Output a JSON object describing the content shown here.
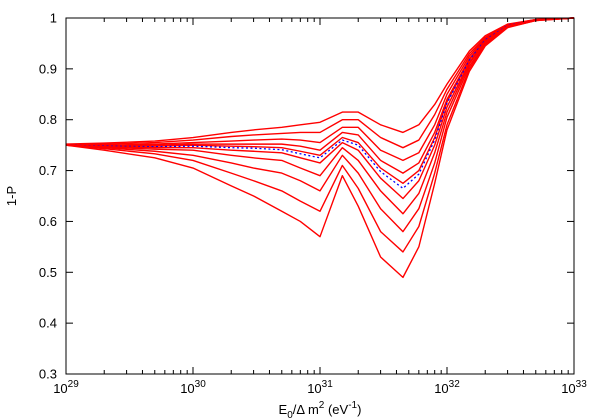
{
  "chart_data": {
    "type": "line",
    "title": "",
    "xlabel": "E0/Δ m2 (eV-1)",
    "xlabel_parts": {
      "main": "E",
      "main_sub": "0",
      "mid": "/Δ m",
      "mid_sup": "2",
      "unit_open": " (eV",
      "unit_sup": "-1",
      "unit_close": ")"
    },
    "ylabel": "1-P",
    "x_scale": "log",
    "xlim": [
      1e+29,
      1e+33
    ],
    "ylim": [
      0.3,
      1.0
    ],
    "x_ticks": [
      {
        "base": "10",
        "exp": "29",
        "value": 1e+29
      },
      {
        "base": "10",
        "exp": "30",
        "value": 1e+30
      },
      {
        "base": "10",
        "exp": "31",
        "value": 1e+31
      },
      {
        "base": "10",
        "exp": "32",
        "value": 1e+32
      },
      {
        "base": "10",
        "exp": "33",
        "value": 1e+33
      }
    ],
    "y_ticks": [
      "0.3",
      "0.4",
      "0.5",
      "0.6",
      "0.7",
      "0.8",
      "0.9",
      "1"
    ],
    "grid": false,
    "legend": "none",
    "x": [
      1e+29,
      2e+29,
      5e+29,
      1e+30,
      2e+30,
      3e+30,
      5e+30,
      7e+30,
      1e+31,
      1.5e+31,
      2e+31,
      3e+31,
      4.5e+31,
      6e+31,
      8e+31,
      1e+32,
      1.5e+32,
      2e+32,
      3e+32,
      5e+32,
      1e+33
    ],
    "series": [
      {
        "color": "#ff0000",
        "dash": "solid",
        "values": [
          0.752,
          0.754,
          0.758,
          0.765,
          0.775,
          0.78,
          0.785,
          0.79,
          0.795,
          0.815,
          0.815,
          0.79,
          0.775,
          0.79,
          0.83,
          0.87,
          0.935,
          0.965,
          0.988,
          0.997,
          1.0
        ]
      },
      {
        "color": "#ff0000",
        "dash": "solid",
        "values": [
          0.751,
          0.752,
          0.755,
          0.76,
          0.767,
          0.77,
          0.773,
          0.775,
          0.775,
          0.8,
          0.8,
          0.765,
          0.745,
          0.76,
          0.81,
          0.86,
          0.93,
          0.962,
          0.987,
          0.997,
          1.0
        ]
      },
      {
        "color": "#ff0000",
        "dash": "solid",
        "values": [
          0.75,
          0.75,
          0.752,
          0.755,
          0.758,
          0.76,
          0.762,
          0.76,
          0.755,
          0.785,
          0.785,
          0.74,
          0.72,
          0.735,
          0.79,
          0.85,
          0.925,
          0.96,
          0.986,
          0.997,
          1.0
        ]
      },
      {
        "color": "#ff0000",
        "dash": "solid",
        "values": [
          0.75,
          0.749,
          0.75,
          0.752,
          0.752,
          0.752,
          0.752,
          0.748,
          0.74,
          0.775,
          0.77,
          0.72,
          0.695,
          0.715,
          0.775,
          0.84,
          0.92,
          0.958,
          0.985,
          0.996,
          1.0
        ]
      },
      {
        "color": "#ff0000",
        "dash": "solid",
        "values": [
          0.75,
          0.748,
          0.748,
          0.75,
          0.748,
          0.747,
          0.745,
          0.738,
          0.73,
          0.765,
          0.755,
          0.705,
          0.675,
          0.7,
          0.765,
          0.835,
          0.918,
          0.957,
          0.985,
          0.996,
          1.0
        ]
      },
      {
        "color": "#0000ff",
        "dash": "dotted",
        "values": [
          0.75,
          0.748,
          0.747,
          0.748,
          0.745,
          0.744,
          0.741,
          0.733,
          0.725,
          0.76,
          0.75,
          0.698,
          0.665,
          0.693,
          0.76,
          0.833,
          0.917,
          0.957,
          0.985,
          0.996,
          1.0
        ]
      },
      {
        "color": "#ff0000",
        "dash": "solid",
        "values": [
          0.75,
          0.747,
          0.745,
          0.745,
          0.74,
          0.738,
          0.735,
          0.725,
          0.715,
          0.755,
          0.74,
          0.685,
          0.645,
          0.68,
          0.75,
          0.825,
          0.913,
          0.955,
          0.984,
          0.996,
          1.0
        ]
      },
      {
        "color": "#ff0000",
        "dash": "solid",
        "values": [
          0.75,
          0.746,
          0.742,
          0.74,
          0.73,
          0.725,
          0.72,
          0.705,
          0.69,
          0.745,
          0.72,
          0.66,
          0.615,
          0.655,
          0.735,
          0.815,
          0.91,
          0.953,
          0.984,
          0.996,
          1.0
        ]
      },
      {
        "color": "#ff0000",
        "dash": "solid",
        "values": [
          0.75,
          0.745,
          0.738,
          0.73,
          0.715,
          0.705,
          0.695,
          0.68,
          0.66,
          0.73,
          0.695,
          0.625,
          0.58,
          0.625,
          0.715,
          0.805,
          0.905,
          0.95,
          0.983,
          0.996,
          1.0
        ]
      },
      {
        "color": "#ff0000",
        "dash": "solid",
        "values": [
          0.75,
          0.743,
          0.733,
          0.72,
          0.695,
          0.68,
          0.66,
          0.64,
          0.62,
          0.71,
          0.665,
          0.58,
          0.54,
          0.59,
          0.695,
          0.79,
          0.9,
          0.948,
          0.982,
          0.995,
          1.0
        ]
      },
      {
        "color": "#ff0000",
        "dash": "solid",
        "values": [
          0.75,
          0.74,
          0.725,
          0.705,
          0.67,
          0.65,
          0.62,
          0.6,
          0.57,
          0.69,
          0.63,
          0.53,
          0.49,
          0.55,
          0.675,
          0.78,
          0.895,
          0.945,
          0.981,
          0.995,
          1.0
        ]
      }
    ]
  }
}
